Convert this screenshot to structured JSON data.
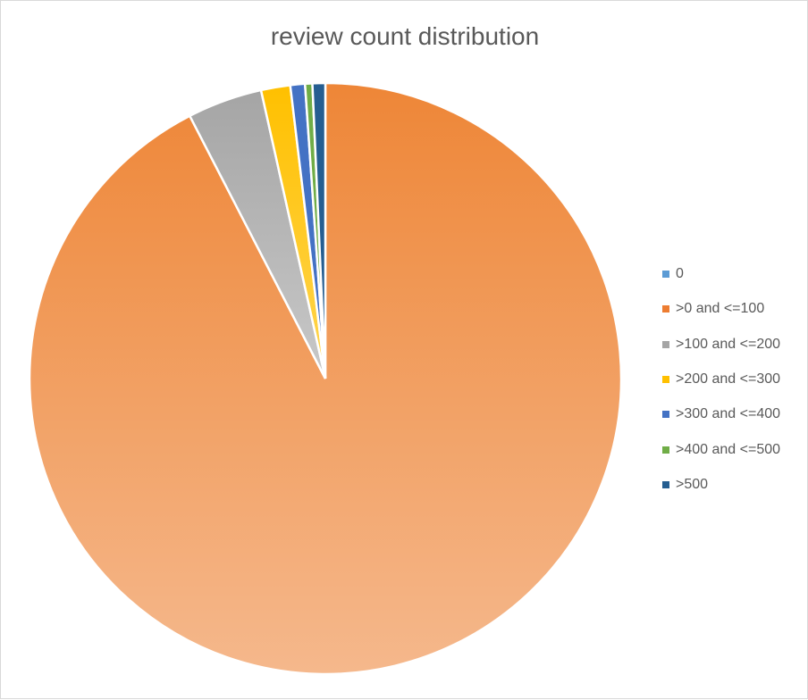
{
  "chart_data": {
    "type": "pie",
    "title": "review count distribution",
    "legend_position": "right",
    "categories": [
      "0",
      ">0 and <=100",
      ">100 and <=200",
      ">200 and <=300",
      ">300 and <=400",
      ">400 and <=500",
      ">500"
    ],
    "values": [
      0.0,
      92.7,
      4.1,
      1.6,
      0.8,
      0.4,
      0.7
    ],
    "colors": [
      "#5B9BD5",
      "#ED7D31",
      "#A5A5A5",
      "#FFC000",
      "#4472C4",
      "#70AD47",
      "#255E91"
    ]
  }
}
